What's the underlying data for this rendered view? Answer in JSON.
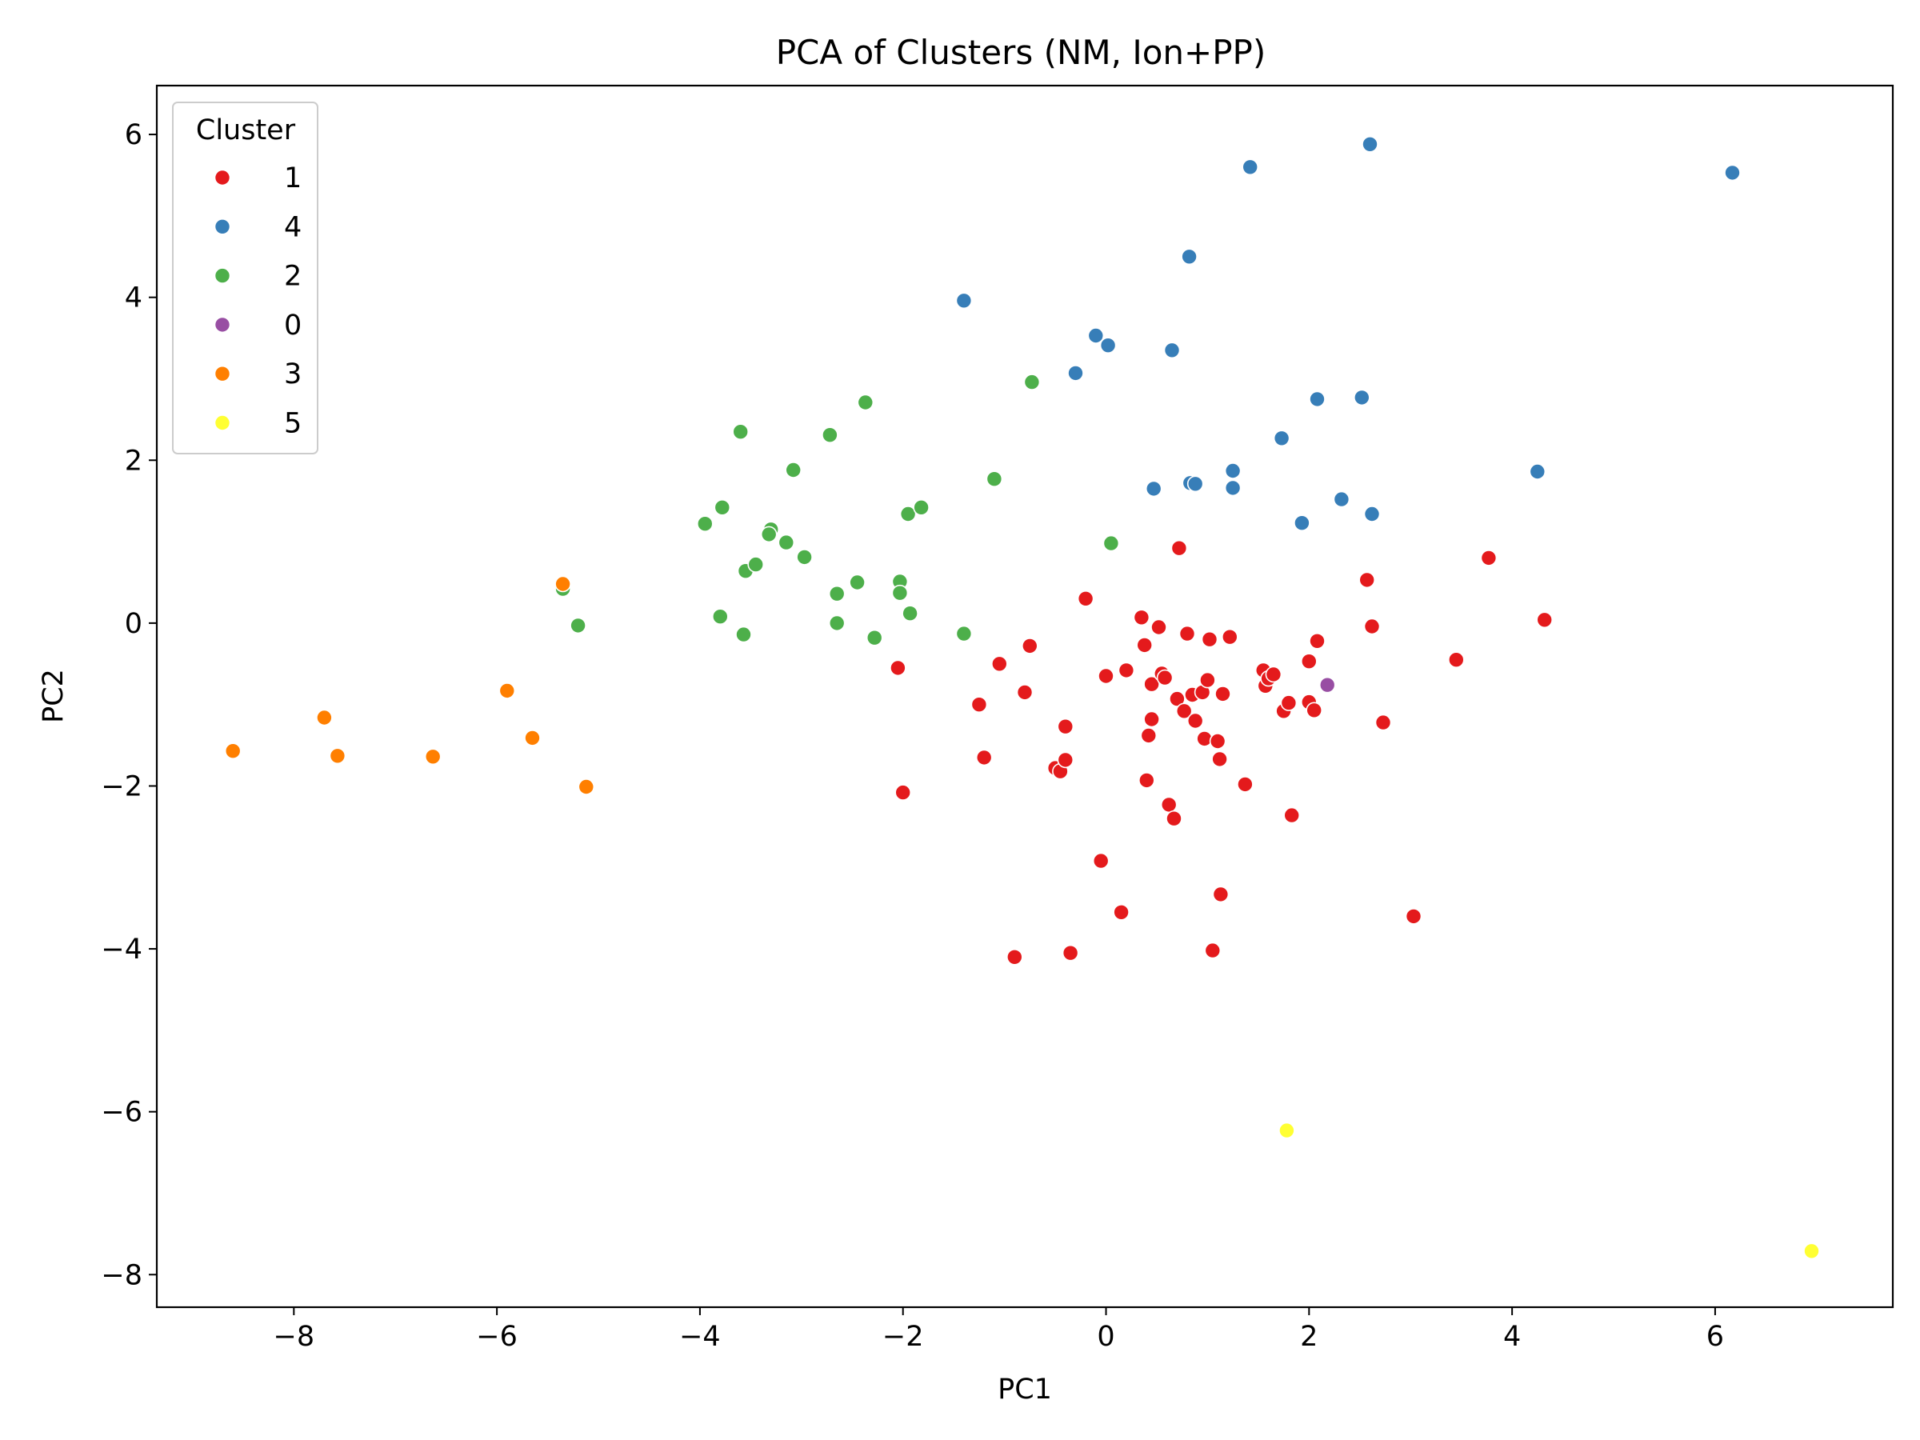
{
  "chart_data": {
    "type": "scatter",
    "title": "PCA of Clusters (NM, Ion+PP)",
    "xlabel": "PC1",
    "ylabel": "PC2",
    "xlim": [
      -9.35,
      7.75
    ],
    "ylim": [
      -8.4,
      6.6
    ],
    "xticks": [
      -8,
      -6,
      -4,
      -2,
      0,
      2,
      4,
      6
    ],
    "yticks": [
      6,
      4,
      2,
      0,
      -2,
      -4,
      -6,
      -8
    ],
    "xtick_labels": [
      "−8",
      "−6",
      "−4",
      "−2",
      "0",
      "2",
      "4",
      "6"
    ],
    "ytick_labels": [
      "6",
      "4",
      "2",
      "0",
      "−2",
      "−4",
      "−6",
      "−8"
    ],
    "grid": false,
    "legend": {
      "title": "Cluster",
      "placement": "top-left"
    },
    "series": [
      {
        "name": "1",
        "color": "#e41a1c",
        "points": [
          [
            -2.05,
            -0.55
          ],
          [
            -2.0,
            -2.08
          ],
          [
            -1.25,
            -1.0
          ],
          [
            -1.2,
            -1.65
          ],
          [
            -1.05,
            -0.5
          ],
          [
            -0.9,
            -4.1
          ],
          [
            -0.8,
            -0.85
          ],
          [
            -0.75,
            -0.28
          ],
          [
            -0.5,
            -1.78
          ],
          [
            -0.45,
            -1.82
          ],
          [
            -0.4,
            -1.68
          ],
          [
            -0.4,
            -1.27
          ],
          [
            -0.35,
            -4.05
          ],
          [
            -0.2,
            0.3
          ],
          [
            -0.05,
            -2.92
          ],
          [
            0.0,
            -0.65
          ],
          [
            0.15,
            -3.55
          ],
          [
            0.2,
            -0.58
          ],
          [
            0.35,
            0.07
          ],
          [
            0.38,
            -0.27
          ],
          [
            0.4,
            -1.93
          ],
          [
            0.42,
            -1.38
          ],
          [
            0.45,
            -1.18
          ],
          [
            0.45,
            -0.75
          ],
          [
            0.52,
            -0.05
          ],
          [
            0.55,
            -0.62
          ],
          [
            0.58,
            -0.67
          ],
          [
            0.62,
            -2.23
          ],
          [
            0.67,
            -2.4
          ],
          [
            0.7,
            -0.93
          ],
          [
            0.72,
            0.92
          ],
          [
            0.77,
            -1.08
          ],
          [
            0.8,
            -0.13
          ],
          [
            0.85,
            -0.88
          ],
          [
            0.88,
            -1.2
          ],
          [
            0.95,
            -0.85
          ],
          [
            0.97,
            -1.42
          ],
          [
            1.0,
            -0.7
          ],
          [
            1.02,
            -0.2
          ],
          [
            1.05,
            -4.02
          ],
          [
            1.1,
            -1.45
          ],
          [
            1.12,
            -1.67
          ],
          [
            1.13,
            -3.33
          ],
          [
            1.15,
            -0.87
          ],
          [
            1.22,
            -0.17
          ],
          [
            1.37,
            -1.98
          ],
          [
            1.55,
            -0.58
          ],
          [
            1.57,
            -0.77
          ],
          [
            1.6,
            -0.68
          ],
          [
            1.65,
            -0.63
          ],
          [
            1.75,
            -1.08
          ],
          [
            1.8,
            -0.98
          ],
          [
            1.83,
            -2.36
          ],
          [
            2.0,
            -0.97
          ],
          [
            2.0,
            -0.47
          ],
          [
            2.05,
            -1.07
          ],
          [
            2.08,
            -0.22
          ],
          [
            2.57,
            0.53
          ],
          [
            2.62,
            -0.04
          ],
          [
            2.73,
            -1.22
          ],
          [
            3.03,
            -3.6
          ],
          [
            3.45,
            -0.45
          ],
          [
            3.77,
            0.8
          ],
          [
            4.32,
            0.04
          ]
        ]
      },
      {
        "name": "4",
        "color": "#377eb8",
        "points": [
          [
            -1.4,
            3.96
          ],
          [
            -0.3,
            3.07
          ],
          [
            -0.1,
            3.53
          ],
          [
            0.02,
            3.41
          ],
          [
            0.47,
            1.65
          ],
          [
            0.65,
            3.35
          ],
          [
            0.82,
            4.5
          ],
          [
            0.83,
            1.72
          ],
          [
            0.88,
            1.71
          ],
          [
            1.25,
            1.87
          ],
          [
            1.25,
            1.66
          ],
          [
            1.42,
            5.6
          ],
          [
            1.73,
            2.27
          ],
          [
            1.93,
            1.23
          ],
          [
            2.08,
            2.75
          ],
          [
            2.32,
            1.52
          ],
          [
            2.52,
            2.77
          ],
          [
            2.6,
            5.88
          ],
          [
            2.62,
            1.34
          ],
          [
            4.25,
            1.86
          ],
          [
            6.17,
            5.53
          ]
        ]
      },
      {
        "name": "2",
        "color": "#4daf4a",
        "points": [
          [
            -5.35,
            0.42
          ],
          [
            -5.2,
            -0.03
          ],
          [
            -3.95,
            1.22
          ],
          [
            -3.8,
            0.08
          ],
          [
            -3.78,
            1.42
          ],
          [
            -3.6,
            2.35
          ],
          [
            -3.57,
            -0.14
          ],
          [
            -3.55,
            0.64
          ],
          [
            -3.45,
            0.72
          ],
          [
            -3.3,
            1.15
          ],
          [
            -3.32,
            1.09
          ],
          [
            -3.15,
            0.99
          ],
          [
            -3.08,
            1.88
          ],
          [
            -2.97,
            0.81
          ],
          [
            -2.72,
            2.31
          ],
          [
            -2.65,
            0.36
          ],
          [
            -2.65,
            0.0
          ],
          [
            -2.45,
            0.5
          ],
          [
            -2.37,
            2.71
          ],
          [
            -2.28,
            -0.18
          ],
          [
            -2.03,
            0.51
          ],
          [
            -2.03,
            0.37
          ],
          [
            -1.95,
            1.34
          ],
          [
            -1.93,
            0.12
          ],
          [
            -1.82,
            1.42
          ],
          [
            -1.4,
            -0.13
          ],
          [
            -1.1,
            1.77
          ],
          [
            -0.73,
            2.96
          ],
          [
            0.05,
            0.98
          ]
        ]
      },
      {
        "name": "0",
        "color": "#984ea3",
        "points": [
          [
            2.18,
            -0.76
          ]
        ]
      },
      {
        "name": "3",
        "color": "#ff7f00",
        "points": [
          [
            -8.6,
            -1.57
          ],
          [
            -7.7,
            -1.16
          ],
          [
            -7.57,
            -1.63
          ],
          [
            -6.63,
            -1.64
          ],
          [
            -5.9,
            -0.83
          ],
          [
            -5.65,
            -1.41
          ],
          [
            -5.35,
            0.48
          ],
          [
            -5.12,
            -2.01
          ]
        ]
      },
      {
        "name": "5",
        "color": "#ffff33",
        "points": [
          [
            1.78,
            -6.23
          ],
          [
            6.95,
            -7.71
          ]
        ]
      }
    ]
  }
}
